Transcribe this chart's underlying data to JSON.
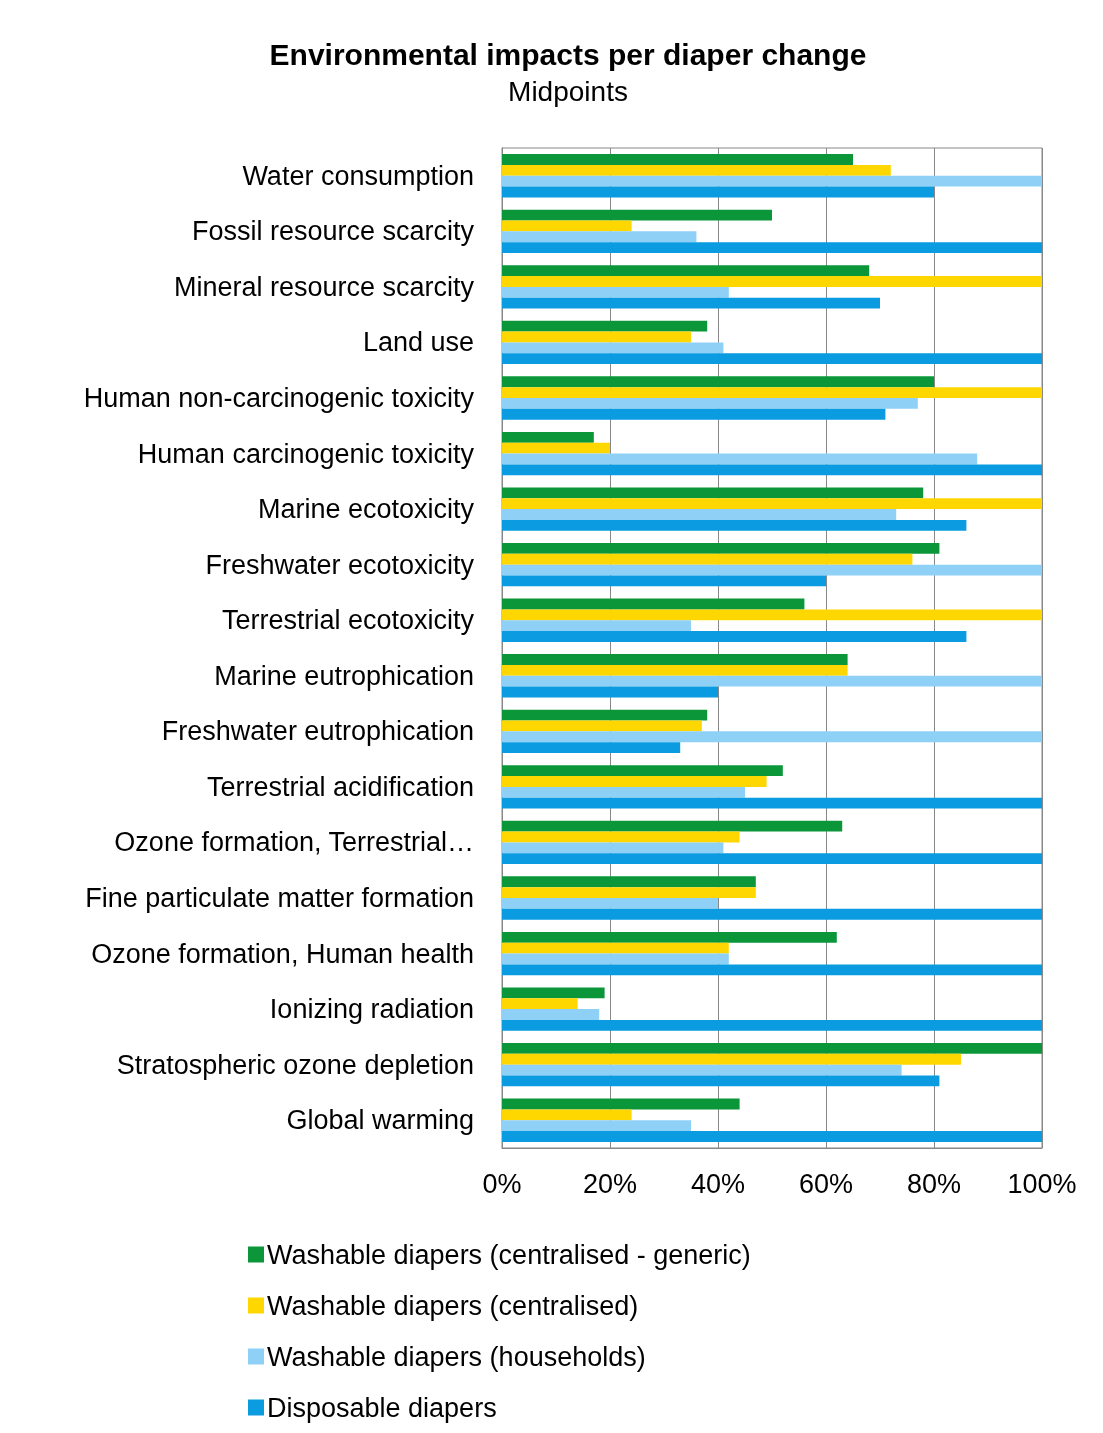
{
  "chart_data": {
    "type": "bar",
    "orientation": "horizontal",
    "title": "Environmental impacts per diaper change",
    "subtitle": "Midpoints",
    "categories": [
      "Water consumption",
      "Fossil resource scarcity",
      "Mineral resource scarcity",
      "Land use",
      "Human non-carcinogenic toxicity",
      "Human carcinogenic toxicity",
      "Marine ecotoxicity",
      "Freshwater ecotoxicity",
      "Terrestrial ecotoxicity",
      "Marine eutrophication",
      "Freshwater eutrophication",
      "Terrestrial acidification",
      "Ozone formation, Terrestrial…",
      "Fine particulate matter formation",
      "Ozone formation, Human health",
      "Ionizing radiation",
      "Stratospheric ozone depletion",
      "Global warming"
    ],
    "series": [
      {
        "name": "Washable diapers (centralised - generic)",
        "color": "#0a9639",
        "values": [
          65,
          50,
          68,
          38,
          80,
          17,
          78,
          81,
          56,
          64,
          38,
          52,
          63,
          47,
          62,
          19,
          100,
          44
        ]
      },
      {
        "name": "Washable diapers (centralised)",
        "color": "#ffd700",
        "values": [
          72,
          24,
          100,
          35,
          100,
          20,
          100,
          76,
          100,
          64,
          37,
          49,
          44,
          47,
          42,
          14,
          85,
          24
        ]
      },
      {
        "name": "Washable diapers (households)",
        "color": "#8fd0f7",
        "values": [
          100,
          36,
          42,
          41,
          77,
          88,
          73,
          100,
          35,
          100,
          100,
          45,
          41,
          40,
          42,
          18,
          74,
          35
        ]
      },
      {
        "name": "Disposable diapers",
        "color": "#0a9be0",
        "values": [
          80,
          100,
          70,
          100,
          71,
          100,
          86,
          60,
          86,
          40,
          33,
          100,
          100,
          100,
          100,
          100,
          81,
          100
        ]
      }
    ],
    "xlim": [
      0,
      100
    ],
    "xticks": [
      {
        "value": 0,
        "label": "0%"
      },
      {
        "value": 20,
        "label": "20%"
      },
      {
        "value": 40,
        "label": "40%"
      },
      {
        "value": 60,
        "label": "60%"
      },
      {
        "value": 80,
        "label": "80%"
      },
      {
        "value": 100,
        "label": "100%"
      }
    ],
    "grid": "x",
    "legend": "bottom"
  }
}
